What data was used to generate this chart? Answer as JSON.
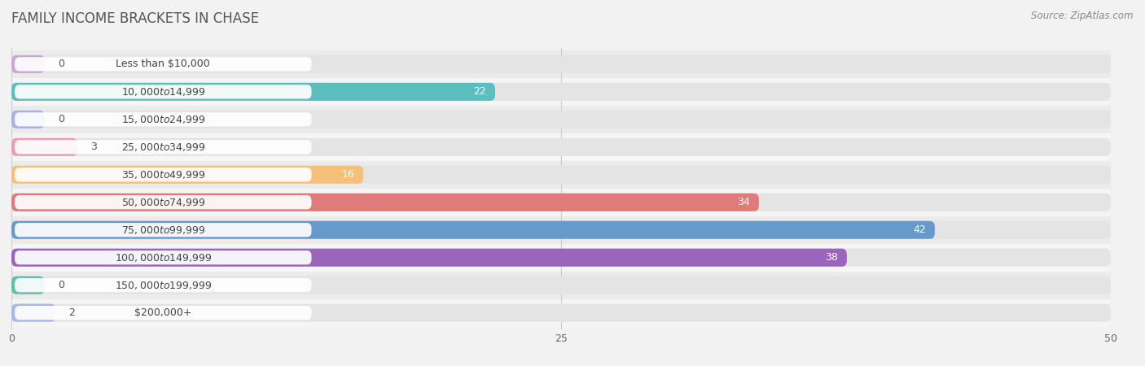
{
  "title": "FAMILY INCOME BRACKETS IN CHASE",
  "source": "Source: ZipAtlas.com",
  "categories": [
    "Less than $10,000",
    "$10,000 to $14,999",
    "$15,000 to $24,999",
    "$25,000 to $34,999",
    "$35,000 to $49,999",
    "$50,000 to $74,999",
    "$75,000 to $99,999",
    "$100,000 to $149,999",
    "$150,000 to $199,999",
    "$200,000+"
  ],
  "values": [
    0,
    22,
    0,
    3,
    16,
    34,
    42,
    38,
    0,
    2
  ],
  "colors": [
    "#c9a8d4",
    "#5bbfbf",
    "#a8aee8",
    "#f09aba",
    "#f5c07a",
    "#e07b7b",
    "#6699cc",
    "#9966bb",
    "#5cbfaf",
    "#a8b8e8"
  ],
  "xlim": [
    0,
    50
  ],
  "xticks": [
    0,
    25,
    50
  ],
  "background_color": "#f2f2f2",
  "bar_bg_color": "#e4e4e4",
  "row_bg_even": "#ebebeb",
  "row_bg_odd": "#f5f5f5",
  "title_fontsize": 12,
  "label_fontsize": 9,
  "tick_fontsize": 9,
  "source_fontsize": 8.5,
  "bar_height": 0.65,
  "label_pill_color": "#ffffff"
}
